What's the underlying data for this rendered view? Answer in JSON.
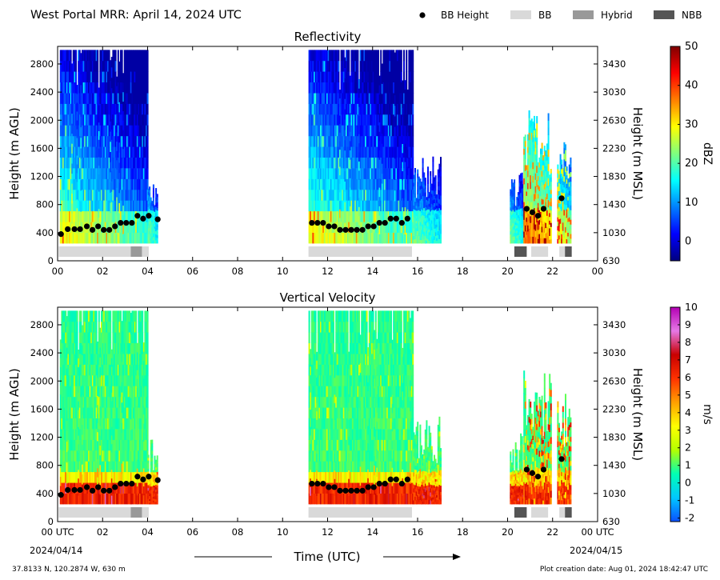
{
  "header": {
    "title": "West Portal MRR:  April 14, 2024 UTC"
  },
  "legend": [
    {
      "label": "BB Height",
      "marker": "dot",
      "color": "#000000"
    },
    {
      "label": "BB",
      "marker": "patch",
      "color": "#d9d9d9"
    },
    {
      "label": "Hybrid",
      "marker": "patch",
      "color": "#999999"
    },
    {
      "label": "NBB",
      "marker": "patch",
      "color": "#555555"
    }
  ],
  "bb_band_colors": {
    "BB": "#d9d9d9",
    "Hybrid": "#999999",
    "NBB": "#555555"
  },
  "footer": {
    "location": "37.8133 N, 120.2874 W, 630 m",
    "created": "Plot creation date: Aug 01, 2024 18:42:47 UTC",
    "time_label": "Time (UTC)",
    "start_date": "2024/04/14",
    "end_date": "2024/04/15"
  },
  "chart_data": [
    {
      "type": "heatmap",
      "title": "Reflectivity",
      "ylabel": "Height (m AGL)",
      "y2label": "Height (m MSL)",
      "xlim": [
        0,
        24
      ],
      "ylim": [
        0,
        3050
      ],
      "x_tick_labels": [
        "00",
        "02",
        "04",
        "06",
        "08",
        "10",
        "12",
        "14",
        "16",
        "18",
        "20",
        "22",
        "00"
      ],
      "y_ticks": [
        0,
        400,
        800,
        1200,
        1600,
        2000,
        2400,
        2800
      ],
      "y2_ticks": [
        "630",
        "1030",
        "1430",
        "1830",
        "2230",
        "2630",
        "3030",
        "3430"
      ],
      "colorbar": {
        "label": "dBZ",
        "range": [
          -5,
          50
        ],
        "ticks": [
          0,
          10,
          20,
          30,
          40,
          50
        ],
        "colors": [
          "#00007f",
          "#0000ff",
          "#007fff",
          "#00ffff",
          "#7fff7f",
          "#ffff00",
          "#ff7f00",
          "#ff0000",
          "#7f0000"
        ]
      },
      "precip_segments": [
        {
          "x0": 0.1,
          "x1": 4.0,
          "top": 3000,
          "level": "low",
          "streak": "orange"
        },
        {
          "x0": 4.0,
          "x1": 4.4,
          "top": 1200,
          "level": "low",
          "streak": "blue"
        },
        {
          "x0": 11.15,
          "x1": 15.8,
          "top": 3000,
          "level": "low",
          "streak": "orange"
        },
        {
          "x0": 15.8,
          "x1": 17.0,
          "top": 1500,
          "level": "low",
          "streak": "blue"
        },
        {
          "x0": 20.1,
          "x1": 20.7,
          "top": 1300,
          "level": "low",
          "streak": "blue"
        },
        {
          "x0": 20.7,
          "x1": 21.9,
          "top": 2150,
          "level": "high",
          "streak": "red"
        },
        {
          "x0": 22.2,
          "x1": 22.8,
          "top": 1850,
          "level": "low",
          "streak": "red"
        }
      ],
      "bright_band_heights": [
        {
          "x": 0.15,
          "y": 380
        },
        {
          "x": 0.45,
          "y": 450
        },
        {
          "x": 0.75,
          "y": 450
        },
        {
          "x": 1.0,
          "y": 450
        },
        {
          "x": 1.3,
          "y": 490
        },
        {
          "x": 1.55,
          "y": 440
        },
        {
          "x": 1.8,
          "y": 490
        },
        {
          "x": 2.05,
          "y": 440
        },
        {
          "x": 2.3,
          "y": 440
        },
        {
          "x": 2.55,
          "y": 490
        },
        {
          "x": 2.8,
          "y": 540
        },
        {
          "x": 3.05,
          "y": 540
        },
        {
          "x": 3.3,
          "y": 540
        },
        {
          "x": 3.55,
          "y": 640
        },
        {
          "x": 3.8,
          "y": 600
        },
        {
          "x": 4.05,
          "y": 640
        },
        {
          "x": 4.45,
          "y": 590
        },
        {
          "x": 11.3,
          "y": 540
        },
        {
          "x": 11.55,
          "y": 540
        },
        {
          "x": 11.8,
          "y": 540
        },
        {
          "x": 12.05,
          "y": 490
        },
        {
          "x": 12.3,
          "y": 490
        },
        {
          "x": 12.55,
          "y": 440
        },
        {
          "x": 12.8,
          "y": 440
        },
        {
          "x": 13.05,
          "y": 440
        },
        {
          "x": 13.3,
          "y": 440
        },
        {
          "x": 13.55,
          "y": 440
        },
        {
          "x": 13.8,
          "y": 490
        },
        {
          "x": 14.05,
          "y": 490
        },
        {
          "x": 14.3,
          "y": 540
        },
        {
          "x": 14.55,
          "y": 540
        },
        {
          "x": 14.8,
          "y": 600
        },
        {
          "x": 15.05,
          "y": 600
        },
        {
          "x": 15.3,
          "y": 540
        },
        {
          "x": 15.55,
          "y": 600
        },
        {
          "x": 20.85,
          "y": 740
        },
        {
          "x": 21.1,
          "y": 690
        },
        {
          "x": 21.35,
          "y": 640
        },
        {
          "x": 21.6,
          "y": 740
        },
        {
          "x": 22.4,
          "y": 890
        }
      ],
      "bb_type_bands": [
        {
          "x0": 0.05,
          "x1": 3.25,
          "type": "BB"
        },
        {
          "x0": 3.25,
          "x1": 3.75,
          "type": "Hybrid"
        },
        {
          "x0": 3.75,
          "x1": 4.05,
          "type": "BB"
        },
        {
          "x0": 11.15,
          "x1": 15.75,
          "type": "BB"
        },
        {
          "x0": 20.3,
          "x1": 20.85,
          "type": "NBB"
        },
        {
          "x0": 21.05,
          "x1": 21.8,
          "type": "BB"
        },
        {
          "x0": 22.3,
          "x1": 22.55,
          "type": "BB"
        },
        {
          "x0": 22.55,
          "x1": 22.85,
          "type": "NBB"
        }
      ]
    },
    {
      "type": "heatmap",
      "title": "Vertical Velocity",
      "ylabel": "Height (m AGL)",
      "y2label": "Height (m MSL)",
      "xlim": [
        0,
        24
      ],
      "ylim": [
        0,
        3050
      ],
      "x_tick_labels": [
        "00 UTC",
        "02",
        "04",
        "06",
        "08",
        "10",
        "12",
        "14",
        "16",
        "18",
        "20",
        "22",
        "00 UTC"
      ],
      "y_ticks": [
        0,
        400,
        800,
        1200,
        1600,
        2000,
        2400,
        2800
      ],
      "y2_ticks": [
        "630",
        "1030",
        "1430",
        "1830",
        "2230",
        "2630",
        "3030",
        "3430"
      ],
      "colorbar": {
        "label": "m/s",
        "range": [
          -2.2,
          10
        ],
        "ticks": [
          -2,
          -1,
          0,
          1,
          2,
          3,
          4,
          5,
          6,
          7,
          8,
          9,
          10
        ],
        "colors": [
          "#0a50ff",
          "#00c8ff",
          "#00ffb4",
          "#b4ff00",
          "#ffff00",
          "#ffa000",
          "#ff3200",
          "#c80000",
          "#e678e6",
          "#b400b4"
        ]
      },
      "precip_segments": [
        {
          "x0": 0.1,
          "x1": 4.0,
          "top": 3000,
          "level": "low",
          "streak": "orange"
        },
        {
          "x0": 4.0,
          "x1": 4.4,
          "top": 1200,
          "level": "low",
          "streak": "orange"
        },
        {
          "x0": 11.15,
          "x1": 15.8,
          "top": 3000,
          "level": "low",
          "streak": "orange"
        },
        {
          "x0": 15.8,
          "x1": 17.0,
          "top": 1500,
          "level": "low",
          "streak": "orange"
        },
        {
          "x0": 20.1,
          "x1": 20.7,
          "top": 1300,
          "level": "low",
          "streak": "orange"
        },
        {
          "x0": 20.7,
          "x1": 21.9,
          "top": 2150,
          "level": "high",
          "streak": "red"
        },
        {
          "x0": 22.2,
          "x1": 22.8,
          "top": 1850,
          "level": "high",
          "streak": "red"
        }
      ],
      "bright_band_heights": [
        {
          "x": 0.15,
          "y": 380
        },
        {
          "x": 0.45,
          "y": 450
        },
        {
          "x": 0.75,
          "y": 450
        },
        {
          "x": 1.0,
          "y": 450
        },
        {
          "x": 1.3,
          "y": 490
        },
        {
          "x": 1.55,
          "y": 440
        },
        {
          "x": 1.8,
          "y": 490
        },
        {
          "x": 2.05,
          "y": 440
        },
        {
          "x": 2.3,
          "y": 440
        },
        {
          "x": 2.55,
          "y": 490
        },
        {
          "x": 2.8,
          "y": 540
        },
        {
          "x": 3.05,
          "y": 540
        },
        {
          "x": 3.3,
          "y": 540
        },
        {
          "x": 3.55,
          "y": 640
        },
        {
          "x": 3.8,
          "y": 600
        },
        {
          "x": 4.05,
          "y": 640
        },
        {
          "x": 4.45,
          "y": 590
        },
        {
          "x": 11.3,
          "y": 540
        },
        {
          "x": 11.55,
          "y": 540
        },
        {
          "x": 11.8,
          "y": 540
        },
        {
          "x": 12.05,
          "y": 490
        },
        {
          "x": 12.3,
          "y": 490
        },
        {
          "x": 12.55,
          "y": 440
        },
        {
          "x": 12.8,
          "y": 440
        },
        {
          "x": 13.05,
          "y": 440
        },
        {
          "x": 13.3,
          "y": 440
        },
        {
          "x": 13.55,
          "y": 440
        },
        {
          "x": 13.8,
          "y": 490
        },
        {
          "x": 14.05,
          "y": 490
        },
        {
          "x": 14.3,
          "y": 540
        },
        {
          "x": 14.55,
          "y": 540
        },
        {
          "x": 14.8,
          "y": 600
        },
        {
          "x": 15.05,
          "y": 600
        },
        {
          "x": 15.3,
          "y": 540
        },
        {
          "x": 15.55,
          "y": 600
        },
        {
          "x": 20.85,
          "y": 740
        },
        {
          "x": 21.1,
          "y": 690
        },
        {
          "x": 21.35,
          "y": 640
        },
        {
          "x": 21.6,
          "y": 740
        },
        {
          "x": 22.4,
          "y": 890
        }
      ],
      "bb_type_bands": [
        {
          "x0": 0.05,
          "x1": 3.25,
          "type": "BB"
        },
        {
          "x0": 3.25,
          "x1": 3.75,
          "type": "Hybrid"
        },
        {
          "x0": 3.75,
          "x1": 4.05,
          "type": "BB"
        },
        {
          "x0": 11.15,
          "x1": 15.75,
          "type": "BB"
        },
        {
          "x0": 20.3,
          "x1": 20.85,
          "type": "NBB"
        },
        {
          "x0": 21.05,
          "x1": 21.8,
          "type": "BB"
        },
        {
          "x0": 22.3,
          "x1": 22.55,
          "type": "BB"
        },
        {
          "x0": 22.55,
          "x1": 22.85,
          "type": "NBB"
        }
      ]
    }
  ]
}
